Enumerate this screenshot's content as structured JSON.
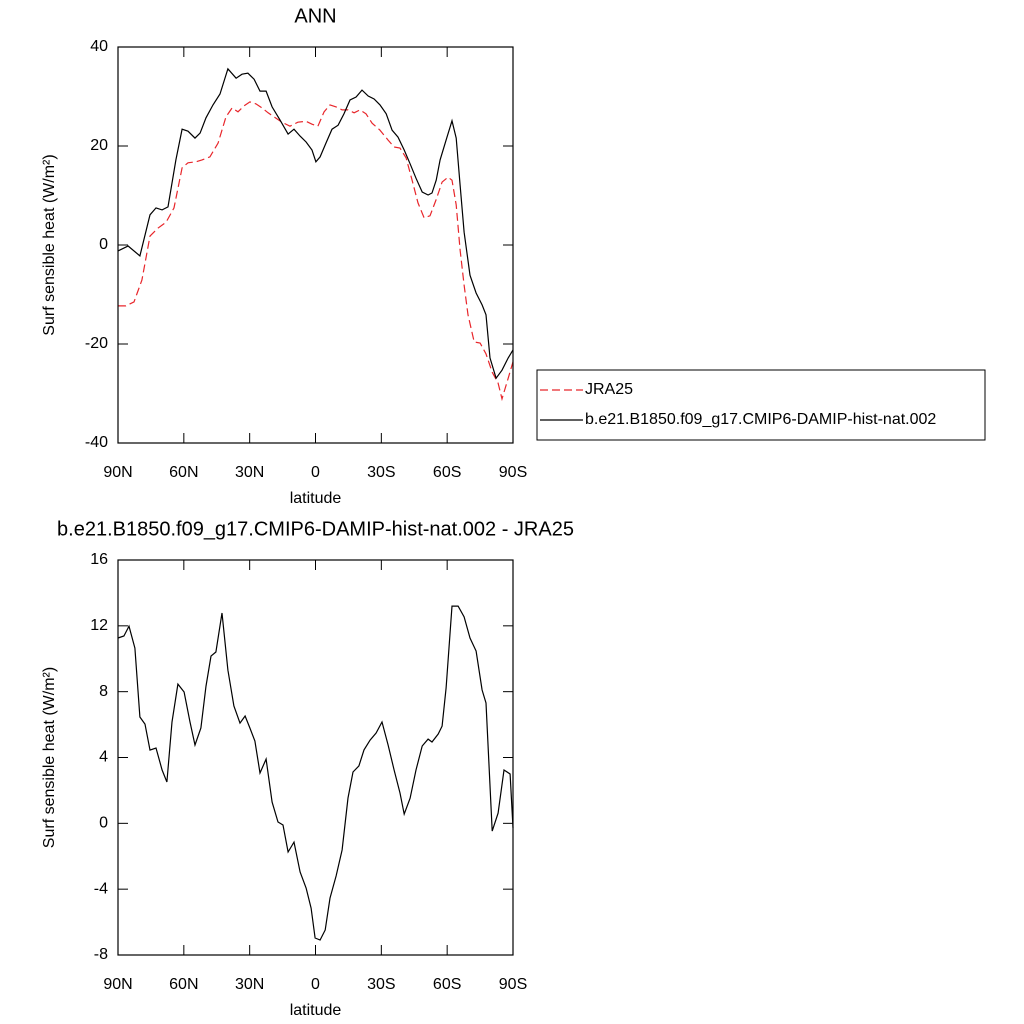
{
  "chart_data": [
    {
      "type": "line",
      "title": "ANN",
      "xlabel": "latitude",
      "ylabel": "Surf sensible heat (W/m²)",
      "xlim": [
        90,
        -90
      ],
      "xticks": [
        {
          "value": 90,
          "label": "90N"
        },
        {
          "value": 60,
          "label": "60N"
        },
        {
          "value": 30,
          "label": "30N"
        },
        0,
        {
          "value": -30,
          "label": "30S"
        },
        {
          "value": -60,
          "label": "60S"
        },
        {
          "value": -90,
          "label": "90S"
        }
      ],
      "ylim": [
        -40,
        40
      ],
      "yticks": [
        -40,
        -20,
        0,
        20,
        40
      ],
      "legend": "right",
      "series": [
        {
          "name": "JRA25",
          "color": "#e8262b",
          "style": "dashed",
          "x": [
            90,
            86.4,
            82.7,
            79.1,
            75.4,
            71.8,
            68.1,
            64.5,
            60.8,
            58.1,
            54.4,
            51.7,
            48.1,
            44.4,
            40.8,
            38.0,
            35.3,
            32.6,
            29.9,
            27.1,
            24.4,
            21.6,
            18.9,
            15.3,
            11.6,
            8.0,
            4.3,
            1.6,
            -1.1,
            -3.9,
            -6.6,
            -9.4,
            -12.1,
            -14.8,
            -17.6,
            -20.3,
            -23.0,
            -25.8,
            -29.4,
            -33.1,
            -35.8,
            -38.5,
            -41.3,
            -44.0,
            -46.7,
            -49.5,
            -52.2,
            -54.9,
            -57.7,
            -60.4,
            -62.2,
            -64.1,
            -65.9,
            -67.7,
            -69.5,
            -72.3,
            -75.0,
            -77.7,
            -80.5,
            -83.2,
            -85.0,
            -87.8,
            -90
          ],
          "values": [
            -12.3,
            -12.3,
            -11.5,
            -7.1,
            1.8,
            3.4,
            4.6,
            7.5,
            15.6,
            16.6,
            16.8,
            17.2,
            17.8,
            20.6,
            25.9,
            27.7,
            26.9,
            28.1,
            28.9,
            28.5,
            27.7,
            26.7,
            25.9,
            24.8,
            24.0,
            24.8,
            25.0,
            24.4,
            24.0,
            26.9,
            28.3,
            27.9,
            27.3,
            27.3,
            26.7,
            27.3,
            26.5,
            24.6,
            23.2,
            21.2,
            19.8,
            19.6,
            17.6,
            13.1,
            8.5,
            5.5,
            5.9,
            9.1,
            12.7,
            13.7,
            13.1,
            8.1,
            -1.0,
            -8.1,
            -14.1,
            -19.6,
            -19.8,
            -22.0,
            -25.7,
            -27.9,
            -31.1,
            -26.9,
            -23.6
          ]
        },
        {
          "name": "b.e21.B1850.f09_g17.CMIP6-DAMIP-hist-nat.002",
          "color": "#000000",
          "style": "solid",
          "x": [
            90,
            85.4,
            80,
            75.4,
            72.7,
            69.9,
            67.2,
            63.6,
            60.8,
            58.1,
            54.9,
            52.6,
            49.9,
            46.7,
            43.5,
            39.9,
            36.2,
            33.5,
            30.8,
            28.0,
            25.3,
            22.5,
            19.8,
            16.2,
            12.5,
            9.8,
            7.0,
            4.3,
            1.6,
            -0.2,
            -2.1,
            -4.8,
            -7.5,
            -10.3,
            -13.0,
            -15.7,
            -18.5,
            -21.2,
            -24.0,
            -26.7,
            -29.4,
            -32.2,
            -34.9,
            -37.6,
            -40.4,
            -43.1,
            -45.8,
            -48.6,
            -51.3,
            -53.1,
            -55.0,
            -56.8,
            -59.5,
            -62.2,
            -64.1,
            -65.9,
            -67.7,
            -70.4,
            -73.2,
            -75.9,
            -77.7,
            -79.5,
            -82.3,
            -85.0,
            -87.8,
            -90
          ],
          "values": [
            -1.2,
            -0.2,
            -2.2,
            6.1,
            7.5,
            7.1,
            7.7,
            17.2,
            23.4,
            23.0,
            21.6,
            22.6,
            25.7,
            28.3,
            30.5,
            35.6,
            33.7,
            34.5,
            34.7,
            33.5,
            31.1,
            31.1,
            27.9,
            25.3,
            22.4,
            23.4,
            22.0,
            20.8,
            19.2,
            16.8,
            17.8,
            20.6,
            23.4,
            24.2,
            26.5,
            29.3,
            29.9,
            31.3,
            30.1,
            29.5,
            28.3,
            26.5,
            23.2,
            21.8,
            19.2,
            16.4,
            13.5,
            10.7,
            10.1,
            10.5,
            13.1,
            17.2,
            21.2,
            25.1,
            21.6,
            12.1,
            2.6,
            -6.1,
            -9.7,
            -12.1,
            -14.1,
            -22.8,
            -26.9,
            -25.3,
            -22.8,
            -21.2
          ]
        }
      ]
    },
    {
      "type": "line",
      "title": "b.e21.B1850.f09_g17.CMIP6-DAMIP-hist-nat.002 - JRA25",
      "xlabel": "latitude",
      "ylabel": "Surf sensible heat (W/m²)",
      "xlim": [
        90,
        -90
      ],
      "xticks": [
        {
          "value": 90,
          "label": "90N"
        },
        {
          "value": 60,
          "label": "60N"
        },
        {
          "value": 30,
          "label": "30N"
        },
        0,
        {
          "value": -30,
          "label": "30S"
        },
        {
          "value": -60,
          "label": "60S"
        },
        {
          "value": -90,
          "label": "90S"
        }
      ],
      "ylim": [
        -8,
        16
      ],
      "yticks": [
        -8,
        -4,
        0,
        4,
        8,
        12,
        16
      ],
      "series": [
        {
          "color": "#000000",
          "style": "solid",
          "x": [
            90,
            87.3,
            85.0,
            82.3,
            80.0,
            77.7,
            75.4,
            72.7,
            69.9,
            67.7,
            65.4,
            62.7,
            59.9,
            57.2,
            54.9,
            52.2,
            49.9,
            47.6,
            45.4,
            42.6,
            39.9,
            37.2,
            34.4,
            32.1,
            29.9,
            27.6,
            25.3,
            22.5,
            19.8,
            17.1,
            14.8,
            12.5,
            9.8,
            7.0,
            4.3,
            2.0,
            0.2,
            -2.1,
            -4.4,
            -6.6,
            -9.4,
            -12.1,
            -14.8,
            -17.1,
            -19.8,
            -22.1,
            -24.9,
            -27.6,
            -30.3,
            -33.1,
            -35.8,
            -38.5,
            -40.4,
            -43.1,
            -45.8,
            -48.6,
            -51.3,
            -53.1,
            -55.9,
            -57.7,
            -59.5,
            -62.2,
            -65.0,
            -67.7,
            -70.4,
            -73.2,
            -75.9,
            -77.7,
            -80.5,
            -83.2,
            -85.9,
            -88.7,
            -90
          ],
          "values": [
            11.26,
            11.38,
            11.98,
            10.65,
            6.46,
            6.03,
            4.45,
            4.58,
            3.24,
            2.51,
            6.16,
            8.46,
            7.98,
            6.16,
            4.76,
            5.79,
            8.34,
            10.16,
            10.41,
            12.78,
            9.31,
            7.13,
            6.09,
            6.52,
            5.79,
            5.0,
            3.06,
            3.9,
            1.29,
            0.08,
            -0.1,
            -1.74,
            -1.14,
            -2.96,
            -3.93,
            -5.15,
            -6.97,
            -7.09,
            -6.48,
            -4.54,
            -3.2,
            -1.62,
            1.54,
            3.12,
            3.49,
            4.46,
            5.06,
            5.49,
            6.16,
            4.76,
            3.24,
            1.84,
            0.56,
            1.53,
            3.24,
            4.7,
            5.12,
            4.94,
            5.43,
            5.91,
            8.22,
            13.2,
            13.2,
            12.55,
            11.26,
            10.47,
            8.1,
            7.31,
            -0.47,
            0.62,
            3.24,
            3.0,
            -0.28
          ]
        }
      ]
    }
  ]
}
